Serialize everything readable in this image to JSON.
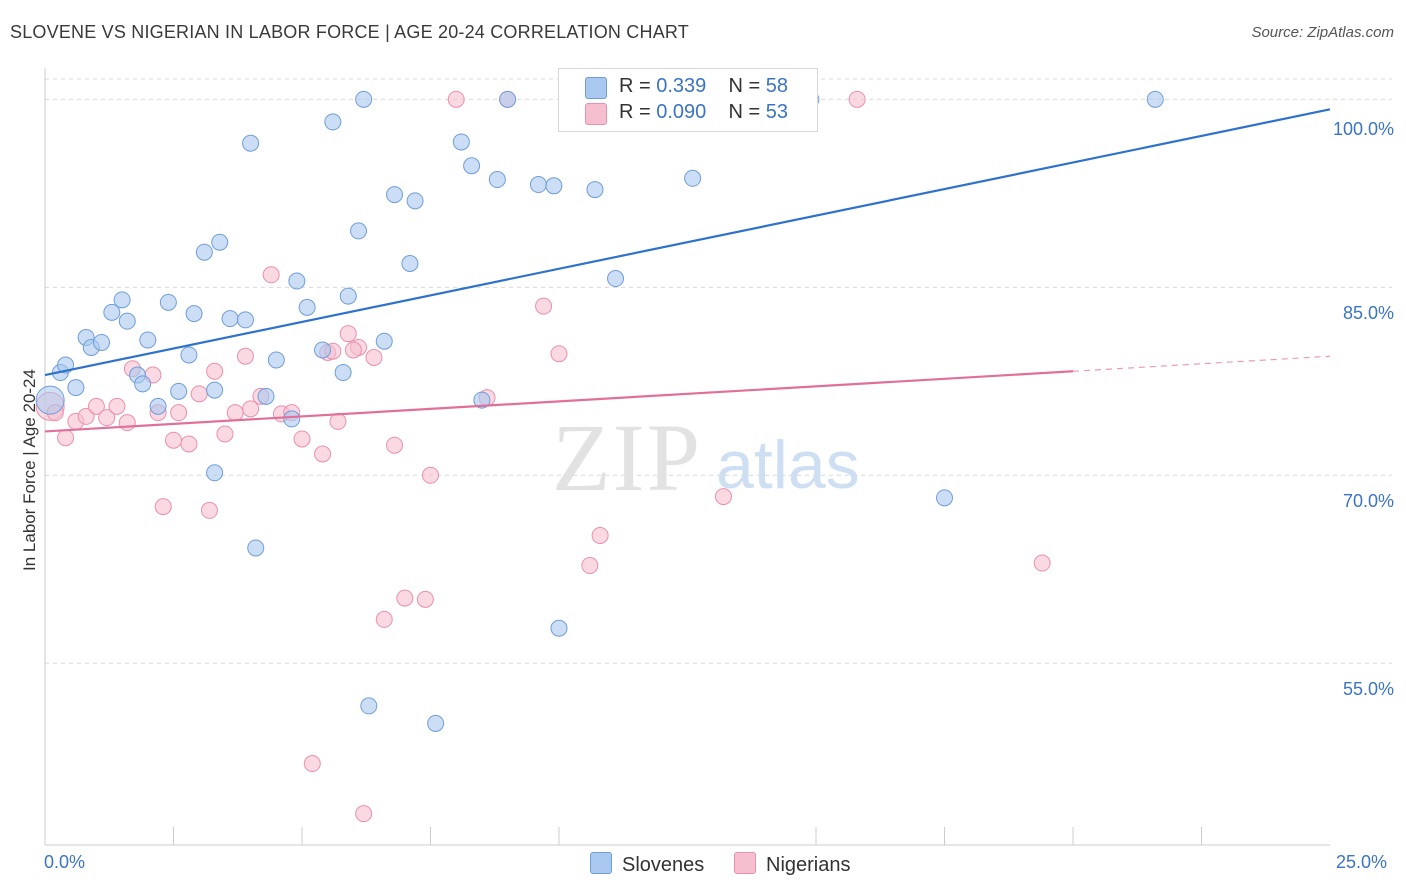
{
  "title": "SLOVENE VS NIGERIAN IN LABOR FORCE | AGE 20-24 CORRELATION CHART",
  "source": "Source: ZipAtlas.com",
  "watermark": {
    "zip": "ZIP",
    "atlas": "atlas"
  },
  "legend": {
    "series": [
      {
        "r_label": "R = ",
        "r_value": "0.339",
        "n_label": "N = ",
        "n_value": "58"
      },
      {
        "r_label": "R = ",
        "r_value": "0.090",
        "n_label": "N = ",
        "n_value": "53"
      }
    ]
  },
  "bottom_legend": [
    "Slovenes",
    "Nigerians"
  ],
  "colors": {
    "blue_fill": "#a9c8ef",
    "blue_stroke": "#6f9ed8",
    "blue_line": "#2e72cc",
    "pink_fill": "#f6bfd0",
    "pink_stroke": "#ea90ad",
    "pink_line": "#e0709a",
    "grid": "#d9d9d9",
    "axis_text": "#3b74c4"
  },
  "chart_data": {
    "type": "scatter",
    "title": "SLOVENE VS NIGERIAN IN LABOR FORCE | AGE 20-24 CORRELATION CHART",
    "xlabel": "",
    "ylabel": "In Labor Force | Age 20-24",
    "xlim": [
      0,
      25
    ],
    "ylim": [
      40.5,
      102.5
    ],
    "x_tick_labels": [
      "0.0%",
      "25.0%"
    ],
    "y_ticks": [
      55,
      70,
      85,
      100
    ],
    "y_tick_labels": [
      "55.0%",
      "70.0%",
      "85.0%",
      "100.0%"
    ],
    "grid": "horizontal dashed",
    "series": [
      {
        "name": "Slovenes",
        "r": 0.339,
        "n": 58,
        "trend": {
          "x": [
            0,
            25
          ],
          "y": [
            78.0,
            99.2
          ],
          "style": "solid"
        },
        "points": [
          [
            0.1,
            76.0
          ],
          [
            0.3,
            78.2
          ],
          [
            0.4,
            78.8
          ],
          [
            0.6,
            77.0
          ],
          [
            0.8,
            81.0
          ],
          [
            0.9,
            80.2
          ],
          [
            1.1,
            80.6
          ],
          [
            1.3,
            83.0
          ],
          [
            1.5,
            84.0
          ],
          [
            1.6,
            82.3
          ],
          [
            1.8,
            78.0
          ],
          [
            1.9,
            77.3
          ],
          [
            2.0,
            80.8
          ],
          [
            2.2,
            75.5
          ],
          [
            2.4,
            83.8
          ],
          [
            2.6,
            76.7
          ],
          [
            2.8,
            79.6
          ],
          [
            2.9,
            82.9
          ],
          [
            3.1,
            87.8
          ],
          [
            3.3,
            76.8
          ],
          [
            3.4,
            88.6
          ],
          [
            3.6,
            82.5
          ],
          [
            3.9,
            82.4
          ],
          [
            4.0,
            96.5
          ],
          [
            4.1,
            64.2
          ],
          [
            4.3,
            76.3
          ],
          [
            4.5,
            79.2
          ],
          [
            4.8,
            74.5
          ],
          [
            4.9,
            85.5
          ],
          [
            5.1,
            83.4
          ],
          [
            5.4,
            80.0
          ],
          [
            5.6,
            98.2
          ],
          [
            5.8,
            78.2
          ],
          [
            5.9,
            84.3
          ],
          [
            6.1,
            89.5
          ],
          [
            6.3,
            51.6
          ],
          [
            6.6,
            80.7
          ],
          [
            6.8,
            92.4
          ],
          [
            7.1,
            86.9
          ],
          [
            7.2,
            91.9
          ],
          [
            7.6,
            50.2
          ],
          [
            8.1,
            96.6
          ],
          [
            8.3,
            94.7
          ],
          [
            8.5,
            76.0
          ],
          [
            8.8,
            93.6
          ],
          [
            9.0,
            100.0
          ],
          [
            9.6,
            93.2
          ],
          [
            9.9,
            93.1
          ],
          [
            10.0,
            57.8
          ],
          [
            10.7,
            92.8
          ],
          [
            11.1,
            85.7
          ],
          [
            11.8,
            100.0
          ],
          [
            12.6,
            93.7
          ],
          [
            14.9,
            100.0
          ],
          [
            17.5,
            68.2
          ],
          [
            21.6,
            100.0
          ],
          [
            3.3,
            70.2
          ],
          [
            6.2,
            100.0
          ]
        ]
      },
      {
        "name": "Nigerians",
        "r": 0.09,
        "n": 53,
        "trend": {
          "x": [
            0,
            20
          ],
          "y": [
            73.5,
            78.3
          ],
          "style": "solid",
          "dashed_to": [
            25,
            79.5
          ]
        },
        "points": [
          [
            0.1,
            75.5
          ],
          [
            0.2,
            75.0
          ],
          [
            0.4,
            73.0
          ],
          [
            0.6,
            74.3
          ],
          [
            0.8,
            74.7
          ],
          [
            1.0,
            75.5
          ],
          [
            1.2,
            74.6
          ],
          [
            1.4,
            75.5
          ],
          [
            1.6,
            74.2
          ],
          [
            1.7,
            78.5
          ],
          [
            2.1,
            78.0
          ],
          [
            2.2,
            75.0
          ],
          [
            2.3,
            67.5
          ],
          [
            2.5,
            72.8
          ],
          [
            2.6,
            75.0
          ],
          [
            2.8,
            72.5
          ],
          [
            3.0,
            76.5
          ],
          [
            3.2,
            67.2
          ],
          [
            3.3,
            78.3
          ],
          [
            3.5,
            73.3
          ],
          [
            3.7,
            75.0
          ],
          [
            3.9,
            79.5
          ],
          [
            4.0,
            75.3
          ],
          [
            4.2,
            76.3
          ],
          [
            4.4,
            86.0
          ],
          [
            4.6,
            74.9
          ],
          [
            4.8,
            75.0
          ],
          [
            5.0,
            72.9
          ],
          [
            5.2,
            47.0
          ],
          [
            5.4,
            71.7
          ],
          [
            5.5,
            79.8
          ],
          [
            5.7,
            74.3
          ],
          [
            5.9,
            81.3
          ],
          [
            6.1,
            80.2
          ],
          [
            6.2,
            43.0
          ],
          [
            6.4,
            79.4
          ],
          [
            6.6,
            58.5
          ],
          [
            6.8,
            72.4
          ],
          [
            7.0,
            60.2
          ],
          [
            7.4,
            60.1
          ],
          [
            7.5,
            70.0
          ],
          [
            8.0,
            100.0
          ],
          [
            8.6,
            76.2
          ],
          [
            9.0,
            100.0
          ],
          [
            9.7,
            83.5
          ],
          [
            10.0,
            79.7
          ],
          [
            10.6,
            62.8
          ],
          [
            10.8,
            65.2
          ],
          [
            13.2,
            68.3
          ],
          [
            15.8,
            100.0
          ],
          [
            19.4,
            63.0
          ],
          [
            6.0,
            80.0
          ],
          [
            5.6,
            79.9
          ]
        ]
      }
    ]
  }
}
